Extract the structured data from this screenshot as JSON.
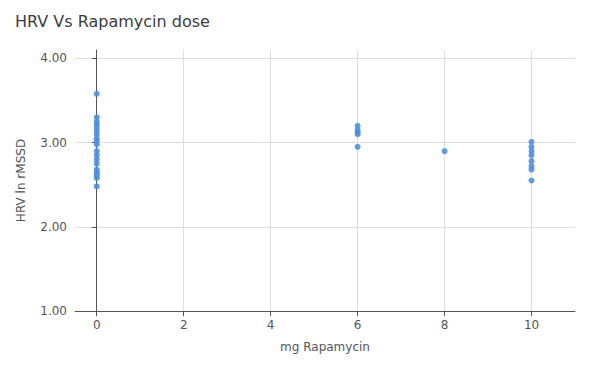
{
  "chart_data": {
    "type": "scatter",
    "title": "HRV Vs Rapamycin dose",
    "xlabel": "mg Rapamycin",
    "ylabel": "HRV ln rMSSD",
    "x": [
      0,
      0,
      0,
      0,
      0,
      0,
      0,
      0,
      0,
      0,
      0,
      0,
      0,
      0,
      0,
      0,
      0,
      0,
      0,
      0,
      6,
      6,
      6,
      6,
      6,
      8,
      10,
      10,
      10,
      10,
      10,
      10,
      10,
      10
    ],
    "values": [
      3.58,
      3.3,
      3.25,
      3.22,
      3.18,
      3.14,
      3.1,
      3.05,
      3.02,
      2.98,
      2.9,
      2.85,
      2.8,
      2.75,
      2.68,
      2.65,
      2.63,
      2.61,
      2.58,
      2.48,
      3.2,
      3.15,
      3.12,
      3.1,
      2.95,
      2.9,
      3.01,
      2.95,
      2.9,
      2.85,
      2.78,
      2.72,
      2.68,
      2.55
    ],
    "color": "#4f8fde",
    "xlim": [
      -0.5,
      11
    ],
    "xticks": [
      0,
      2,
      4,
      6,
      8,
      10
    ],
    "ylim": [
      1.0,
      4.1
    ],
    "yticks": [
      {
        "value": 1.0,
        "label": "1.00"
      },
      {
        "value": 2.0,
        "label": "2.00"
      },
      {
        "value": 3.0,
        "label": "3.00"
      },
      {
        "value": 4.0,
        "label": "4.00"
      }
    ],
    "grid": true
  }
}
